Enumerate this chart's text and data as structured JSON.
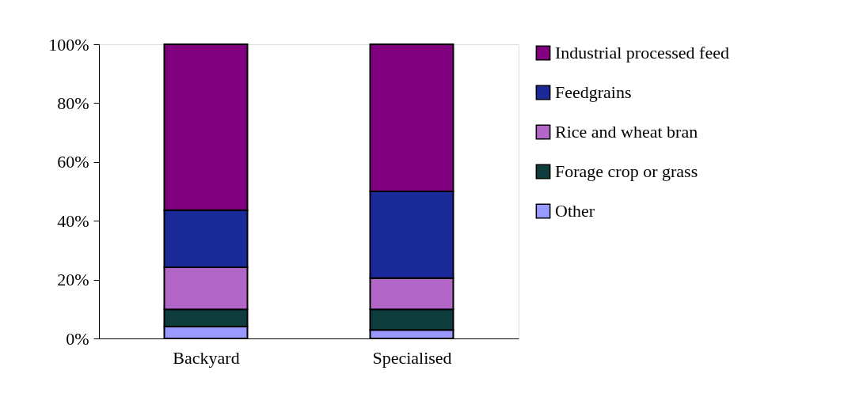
{
  "chart_data": {
    "type": "bar",
    "stacked": true,
    "categories": [
      "Backyard",
      "Specialised"
    ],
    "series": [
      {
        "name": "Other",
        "color": "#9999ff",
        "values": [
          4.0,
          2.9
        ]
      },
      {
        "name": "Forage crop or grass",
        "color": "#0f3d3d",
        "values": [
          5.9,
          7.0
        ]
      },
      {
        "name": "Rice and wheat bran",
        "color": "#b266c8",
        "values": [
          14.3,
          10.6
        ]
      },
      {
        "name": "Feedgrains",
        "color": "#1a2a99",
        "values": [
          19.4,
          29.5
        ]
      },
      {
        "name": "Industrial processed feed",
        "color": "#800080",
        "values": [
          56.4,
          50.0
        ]
      }
    ],
    "ylim": [
      0,
      100
    ],
    "yticks": [
      {
        "value": 0,
        "label": "0%"
      },
      {
        "value": 20,
        "label": "20%"
      },
      {
        "value": 40,
        "label": "40%"
      },
      {
        "value": 60,
        "label": "60%"
      },
      {
        "value": 80,
        "label": "80%"
      },
      {
        "value": 100,
        "label": "100%"
      }
    ],
    "grid": false,
    "legend": "right"
  }
}
